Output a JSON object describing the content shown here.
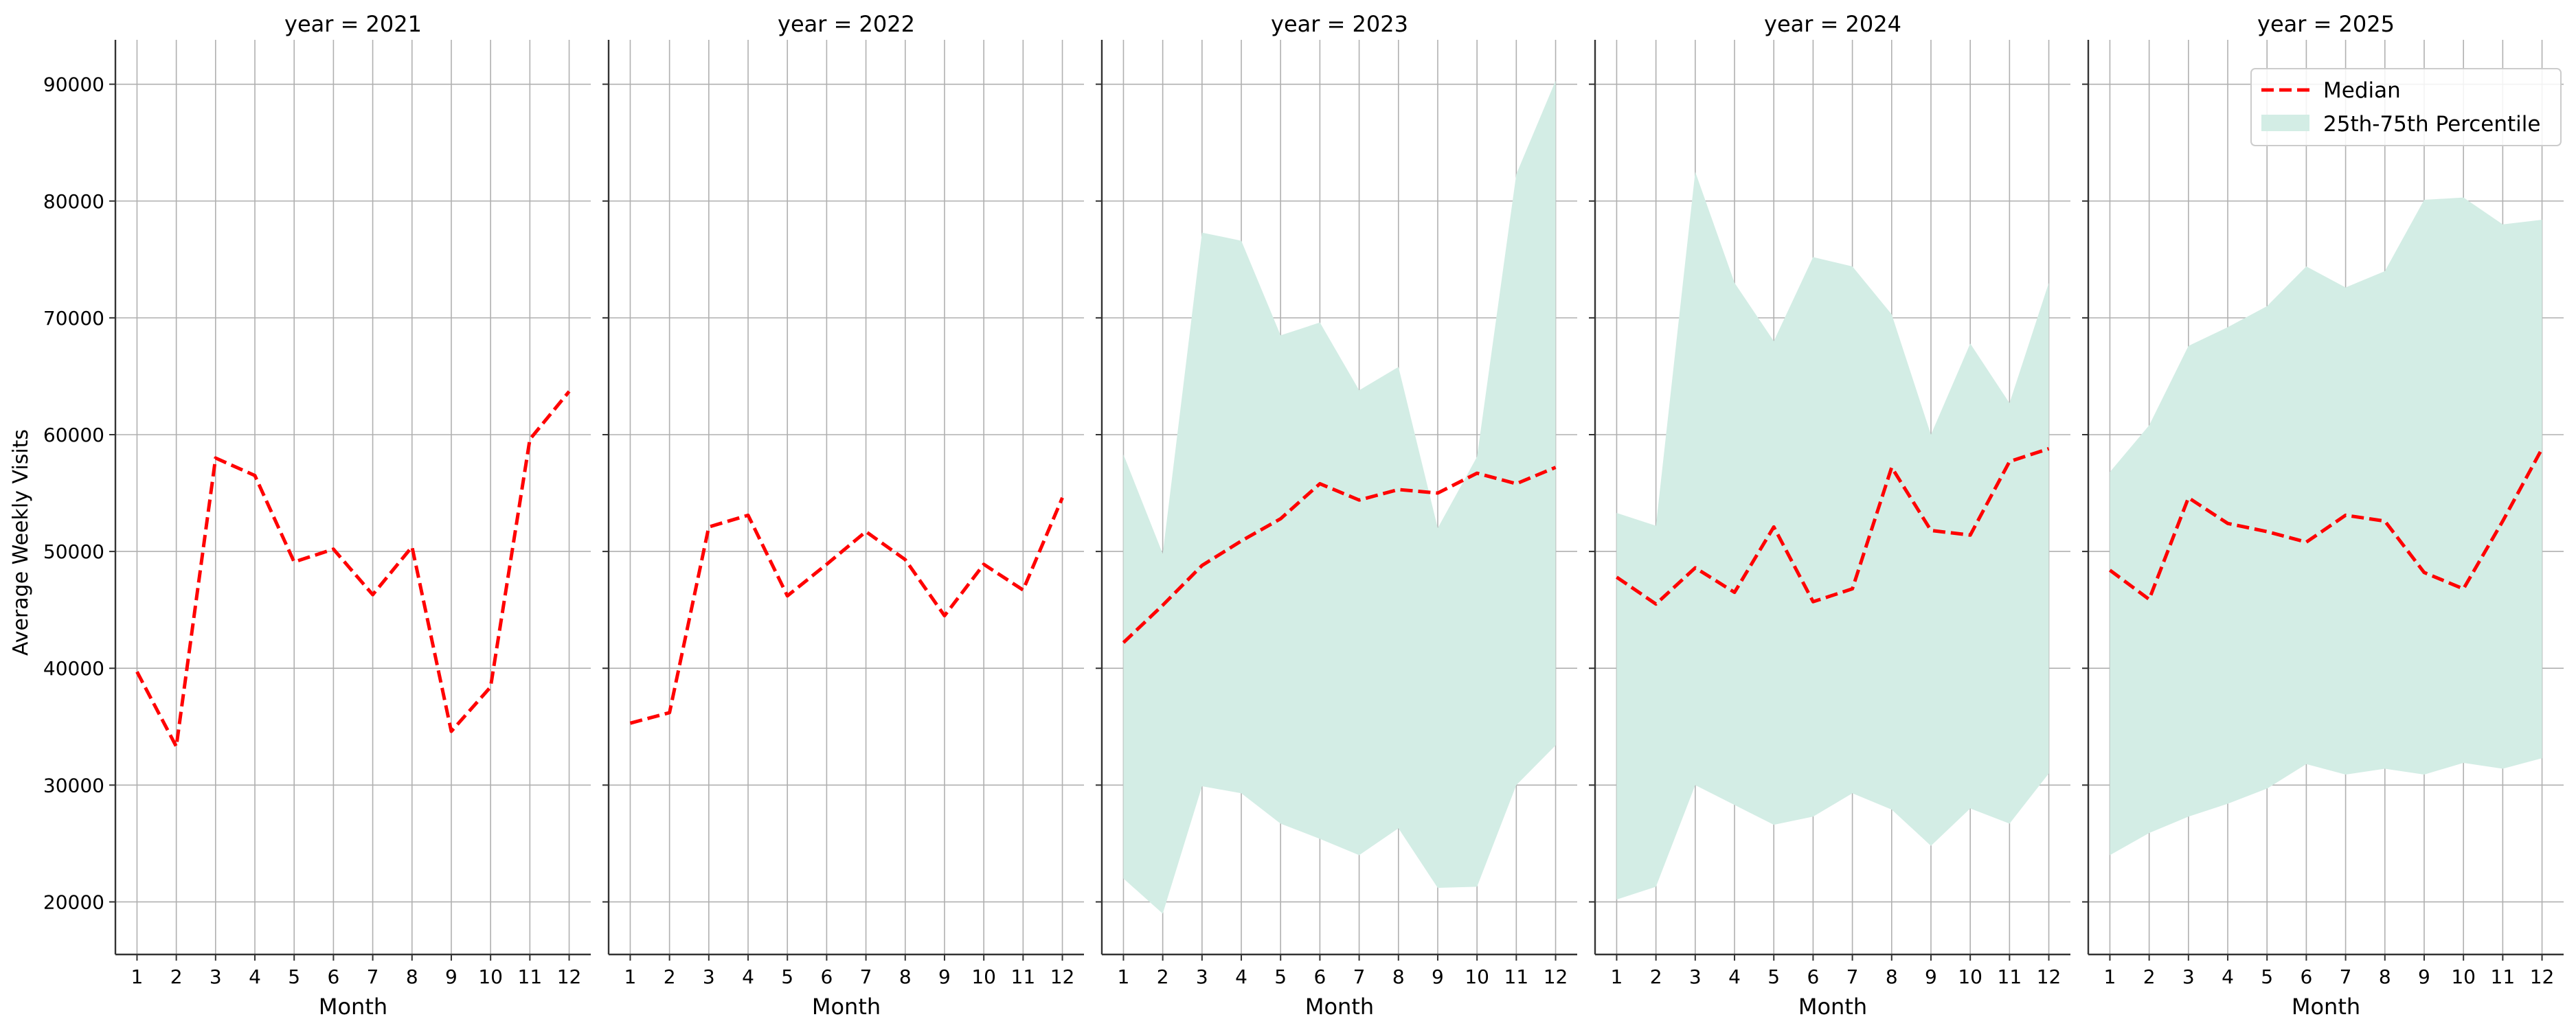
{
  "chart_data": {
    "type": "line",
    "ylabel": "Average Weekly Visits",
    "y_ticks": [
      20000,
      30000,
      40000,
      50000,
      60000,
      70000,
      80000,
      90000
    ],
    "ylim": [
      15500,
      93800
    ],
    "x": [
      1,
      2,
      3,
      4,
      5,
      6,
      7,
      8,
      9,
      10,
      11,
      12
    ],
    "xlabel": "Month",
    "xlim": [
      0.45,
      12.55
    ],
    "grid": true,
    "legend": {
      "placement": "top-right",
      "median_label": "Median",
      "band_label": "25th-75th Percentile"
    },
    "colors": {
      "median": "#ff0000",
      "band": "#d3ede5",
      "grid": "#b0b0b0",
      "spine": "#333333"
    },
    "panels": [
      {
        "title": "year = 2021",
        "median": [
          39700,
          33300,
          58000,
          56500,
          49100,
          50200,
          46300,
          50400,
          34600,
          38400,
          59600,
          63700
        ],
        "p25": null,
        "p75": null
      },
      {
        "title": "year = 2022",
        "median": [
          35300,
          36200,
          52100,
          53100,
          46200,
          48900,
          51700,
          49300,
          44500,
          48900,
          46700,
          54600
        ],
        "p25": null,
        "p75": null
      },
      {
        "title": "year = 2023",
        "median": [
          42200,
          45400,
          48800,
          50900,
          52800,
          55800,
          54400,
          55300,
          55000,
          56700,
          55800,
          57200
        ],
        "p25": [
          22000,
          19000,
          29900,
          29300,
          26700,
          25400,
          24000,
          26300,
          21200,
          21300,
          30000,
          33400
        ],
        "p75": [
          58300,
          49800,
          77300,
          76600,
          68500,
          69600,
          63800,
          65800,
          52000,
          58100,
          82300,
          90300
        ]
      },
      {
        "title": "year = 2024",
        "median": [
          47800,
          45500,
          48600,
          46500,
          52100,
          45700,
          46800,
          57200,
          51800,
          51400,
          57700,
          58800
        ],
        "p25": [
          20200,
          21300,
          30000,
          28300,
          26600,
          27300,
          29300,
          27900,
          24800,
          28000,
          26700,
          31000
        ],
        "p75": [
          53300,
          52200,
          82500,
          73000,
          68000,
          75200,
          74400,
          70300,
          60000,
          67800,
          62700,
          73000
        ]
      },
      {
        "title": "year = 2025",
        "median": [
          48400,
          45900,
          54600,
          52400,
          51700,
          50800,
          53100,
          52600,
          48200,
          46800,
          52600,
          58800
        ],
        "p25": [
          24000,
          25900,
          27300,
          28400,
          29700,
          31800,
          30900,
          31400,
          30900,
          31900,
          31400,
          32300
        ],
        "p75": [
          56800,
          60800,
          67600,
          69200,
          71000,
          74400,
          72600,
          74000,
          80100,
          80300,
          78000,
          78400
        ]
      }
    ]
  }
}
